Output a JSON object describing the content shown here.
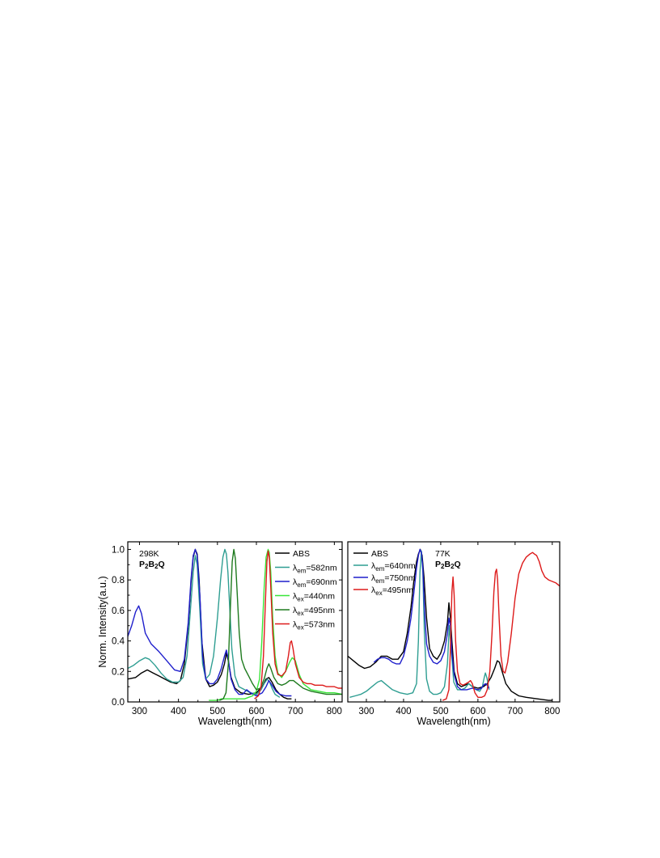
{
  "chart_data": [
    {
      "type": "line",
      "xlabel": "Wavelength(nm)",
      "ylabel": "Norm. Intensity(a.u.)",
      "xlim": [
        270,
        820
      ],
      "ylim": [
        0.0,
        1.05
      ],
      "xticks": [
        "300",
        "400",
        "500",
        "600",
        "700",
        "800"
      ],
      "yticks": [
        "0.0",
        "0.2",
        "0.4",
        "0.6",
        "0.8",
        "1.0"
      ],
      "annotations": [
        "298K",
        "P2B2Q"
      ],
      "legend": "top-right",
      "series": [
        {
          "name": "ABS",
          "label": {
            "base": "ABS",
            "sub": "",
            "value": ""
          },
          "color": "#000000",
          "x": [
            270,
            290,
            305,
            320,
            335,
            350,
            365,
            380,
            395,
            405,
            415,
            425,
            432,
            438,
            443,
            448,
            453,
            460,
            470,
            480,
            490,
            500,
            510,
            518,
            523,
            528,
            535,
            545,
            560,
            580,
            600,
            615,
            625,
            632,
            640,
            650,
            660,
            670,
            680,
            690
          ],
          "y": [
            0.15,
            0.16,
            0.19,
            0.21,
            0.19,
            0.17,
            0.15,
            0.13,
            0.12,
            0.14,
            0.25,
            0.5,
            0.78,
            0.95,
            1.0,
            0.97,
            0.8,
            0.4,
            0.15,
            0.1,
            0.11,
            0.13,
            0.18,
            0.25,
            0.32,
            0.27,
            0.16,
            0.09,
            0.06,
            0.05,
            0.06,
            0.1,
            0.15,
            0.16,
            0.13,
            0.08,
            0.05,
            0.03,
            0.02,
            0.02
          ]
        },
        {
          "name": "λem=582nm",
          "label": {
            "base": "λ",
            "sub": "em",
            "value": "=582nm"
          },
          "color": "#2f9e92",
          "x": [
            270,
            285,
            300,
            315,
            325,
            340,
            355,
            370,
            385,
            400,
            412,
            422,
            430,
            438,
            443,
            448,
            455,
            462,
            470,
            480,
            490,
            500,
            508,
            514,
            519,
            523,
            527,
            532,
            537,
            545,
            555,
            570,
            585,
            600,
            612,
            620,
            628,
            634,
            640,
            648,
            660
          ],
          "y": [
            0.22,
            0.24,
            0.27,
            0.29,
            0.28,
            0.24,
            0.19,
            0.15,
            0.13,
            0.13,
            0.16,
            0.3,
            0.58,
            0.85,
            0.96,
            0.9,
            0.6,
            0.25,
            0.15,
            0.18,
            0.3,
            0.55,
            0.8,
            0.95,
            1.0,
            0.97,
            0.85,
            0.6,
            0.35,
            0.17,
            0.1,
            0.08,
            0.06,
            0.05,
            0.08,
            0.12,
            0.15,
            0.13,
            0.09,
            0.05,
            0.03
          ]
        },
        {
          "name": "λem=690nm",
          "label": {
            "base": "λ",
            "sub": "em",
            "value": "=690nm"
          },
          "color": "#1f1fcc",
          "x": [
            270,
            280,
            290,
            298,
            305,
            315,
            330,
            350,
            370,
            390,
            405,
            415,
            425,
            432,
            438,
            443,
            448,
            455,
            462,
            470,
            480,
            490,
            500,
            510,
            518,
            523,
            528,
            535,
            545,
            555,
            565,
            575,
            585,
            600,
            615,
            625,
            632,
            640,
            650,
            660,
            675,
            690
          ],
          "y": [
            0.43,
            0.5,
            0.59,
            0.63,
            0.58,
            0.45,
            0.38,
            0.33,
            0.27,
            0.21,
            0.2,
            0.28,
            0.52,
            0.8,
            0.96,
            1.0,
            0.96,
            0.7,
            0.3,
            0.15,
            0.12,
            0.12,
            0.15,
            0.22,
            0.3,
            0.34,
            0.28,
            0.15,
            0.08,
            0.05,
            0.05,
            0.08,
            0.06,
            0.04,
            0.06,
            0.1,
            0.14,
            0.11,
            0.07,
            0.05,
            0.04,
            0.04
          ]
        },
        {
          "name": "λex=440nm",
          "label": {
            "base": "λ",
            "sub": "ex",
            "value": "=440nm"
          },
          "color": "#39e639",
          "x": [
            478,
            490,
            500,
            510,
            520,
            530,
            540,
            550,
            560,
            570,
            580,
            590,
            600,
            608,
            614,
            620,
            625,
            630,
            633,
            637,
            642,
            648,
            655,
            665,
            675,
            685,
            692,
            700,
            710,
            720,
            740,
            760,
            780,
            800,
            820
          ],
          "y": [
            0.01,
            0.01,
            0.01,
            0.02,
            0.02,
            0.02,
            0.02,
            0.02,
            0.02,
            0.02,
            0.03,
            0.04,
            0.07,
            0.15,
            0.4,
            0.75,
            0.95,
            1.0,
            0.98,
            0.85,
            0.55,
            0.3,
            0.19,
            0.16,
            0.2,
            0.26,
            0.29,
            0.27,
            0.18,
            0.12,
            0.08,
            0.07,
            0.06,
            0.06,
            0.05
          ]
        },
        {
          "name": "λex=495nm",
          "label": {
            "base": "λ",
            "sub": "ex",
            "value": "=495nm"
          },
          "color": "#1e7a1e",
          "x": [
            505,
            515,
            522,
            528,
            533,
            538,
            542,
            546,
            550,
            556,
            562,
            570,
            580,
            590,
            600,
            610,
            620,
            627,
            632,
            637,
            645,
            655,
            665,
            675,
            685,
            695,
            705,
            720,
            740,
            760,
            780,
            800,
            820
          ],
          "y": [
            0.01,
            0.02,
            0.06,
            0.25,
            0.6,
            0.92,
            1.0,
            0.94,
            0.75,
            0.45,
            0.28,
            0.22,
            0.17,
            0.12,
            0.08,
            0.09,
            0.15,
            0.22,
            0.25,
            0.22,
            0.16,
            0.12,
            0.11,
            0.12,
            0.14,
            0.14,
            0.12,
            0.09,
            0.07,
            0.06,
            0.05,
            0.05,
            0.05
          ]
        },
        {
          "name": "λex=573nm",
          "label": {
            "base": "λ",
            "sub": "ex",
            "value": "=573nm"
          },
          "color": "#dd1a1a",
          "x": [
            595,
            605,
            612,
            618,
            623,
            627,
            630,
            633,
            637,
            642,
            648,
            655,
            665,
            675,
            682,
            687,
            690,
            694,
            700,
            710,
            720,
            730,
            740,
            750,
            760,
            770,
            780,
            790,
            800,
            810,
            820
          ],
          "y": [
            0.02,
            0.04,
            0.1,
            0.3,
            0.65,
            0.92,
            0.99,
            0.95,
            0.75,
            0.45,
            0.25,
            0.18,
            0.17,
            0.2,
            0.3,
            0.39,
            0.4,
            0.35,
            0.25,
            0.16,
            0.13,
            0.12,
            0.12,
            0.11,
            0.11,
            0.11,
            0.1,
            0.1,
            0.1,
            0.09,
            0.09
          ]
        }
      ]
    },
    {
      "type": "line",
      "xlabel": "Wavelength(nm)",
      "ylabel": "",
      "xlim": [
        250,
        820
      ],
      "ylim": [
        0.0,
        1.05
      ],
      "xticks": [
        "300",
        "400",
        "500",
        "600",
        "700",
        "800"
      ],
      "yticks": [],
      "annotations": [
        "77K",
        "P2B2Q"
      ],
      "legend": "top-left",
      "series": [
        {
          "name": "ABS",
          "label": {
            "base": "ABS",
            "sub": "",
            "value": ""
          },
          "color": "#000000",
          "x": [
            250,
            265,
            280,
            295,
            310,
            325,
            340,
            355,
            370,
            385,
            400,
            410,
            420,
            428,
            435,
            440,
            445,
            450,
            455,
            462,
            470,
            480,
            490,
            500,
            510,
            518,
            522,
            526,
            530,
            536,
            545,
            555,
            565,
            575,
            585,
            600,
            615,
            625,
            635,
            645,
            652,
            658,
            665,
            675,
            690,
            710,
            730,
            760,
            790,
            800
          ],
          "y": [
            0.3,
            0.27,
            0.24,
            0.22,
            0.23,
            0.26,
            0.3,
            0.3,
            0.28,
            0.28,
            0.33,
            0.45,
            0.62,
            0.8,
            0.92,
            0.97,
            1.0,
            0.96,
            0.82,
            0.55,
            0.35,
            0.3,
            0.28,
            0.32,
            0.4,
            0.52,
            0.65,
            0.55,
            0.4,
            0.2,
            0.12,
            0.1,
            0.11,
            0.12,
            0.1,
            0.09,
            0.1,
            0.12,
            0.16,
            0.22,
            0.27,
            0.26,
            0.2,
            0.12,
            0.07,
            0.04,
            0.03,
            0.02,
            0.01,
            0.01
          ]
        },
        {
          "name": "λem=640nm",
          "label": {
            "base": "λ",
            "sub": "em",
            "value": "=640nm"
          },
          "color": "#2f9e92",
          "x": [
            255,
            270,
            285,
            300,
            315,
            330,
            340,
            355,
            370,
            390,
            410,
            425,
            435,
            440,
            444,
            448,
            452,
            456,
            462,
            470,
            480,
            490,
            500,
            510,
            518,
            523,
            528,
            535,
            545,
            555,
            565,
            575,
            585,
            595,
            605,
            612,
            617,
            620,
            624,
            630
          ],
          "y": [
            0.03,
            0.04,
            0.05,
            0.07,
            0.1,
            0.13,
            0.14,
            0.11,
            0.08,
            0.06,
            0.05,
            0.06,
            0.12,
            0.4,
            0.85,
            0.99,
            0.85,
            0.45,
            0.15,
            0.07,
            0.05,
            0.05,
            0.06,
            0.1,
            0.25,
            0.5,
            0.35,
            0.13,
            0.08,
            0.08,
            0.09,
            0.12,
            0.1,
            0.08,
            0.07,
            0.1,
            0.16,
            0.19,
            0.16,
            0.08
          ]
        },
        {
          "name": "λem=750nm",
          "label": {
            "base": "λ",
            "sub": "em",
            "value": "=750nm"
          },
          "color": "#1f1fcc",
          "x": [
            320,
            330,
            340,
            350,
            360,
            370,
            380,
            390,
            400,
            410,
            420,
            428,
            435,
            440,
            444,
            448,
            452,
            456,
            462,
            470,
            480,
            490,
            500,
            510,
            518,
            522,
            526,
            530,
            536,
            545,
            555,
            570,
            585,
            600,
            610,
            615,
            620,
            625,
            630
          ],
          "y": [
            0.26,
            0.28,
            0.29,
            0.29,
            0.28,
            0.26,
            0.25,
            0.25,
            0.3,
            0.4,
            0.55,
            0.72,
            0.88,
            0.96,
            1.0,
            0.98,
            0.88,
            0.62,
            0.38,
            0.3,
            0.26,
            0.25,
            0.27,
            0.33,
            0.45,
            0.55,
            0.5,
            0.32,
            0.18,
            0.1,
            0.08,
            0.08,
            0.09,
            0.08,
            0.09,
            0.11,
            0.12,
            0.11,
            0.09
          ]
        },
        {
          "name": "λex=495nm",
          "label": {
            "base": "λ",
            "sub": "ex",
            "value": "=495nm"
          },
          "color": "#dd1a1a",
          "x": [
            505,
            515,
            522,
            526,
            530,
            533,
            536,
            540,
            545,
            552,
            560,
            568,
            575,
            580,
            585,
            592,
            600,
            610,
            618,
            625,
            632,
            638,
            643,
            647,
            650,
            653,
            657,
            662,
            668,
            673,
            680,
            690,
            700,
            710,
            720,
            730,
            740,
            747,
            752,
            758,
            765,
            772,
            780,
            790,
            800,
            810,
            820
          ],
          "y": [
            0.01,
            0.02,
            0.08,
            0.35,
            0.72,
            0.82,
            0.7,
            0.4,
            0.2,
            0.12,
            0.11,
            0.12,
            0.13,
            0.14,
            0.12,
            0.06,
            0.03,
            0.03,
            0.04,
            0.08,
            0.2,
            0.45,
            0.72,
            0.85,
            0.87,
            0.8,
            0.55,
            0.3,
            0.2,
            0.19,
            0.26,
            0.45,
            0.68,
            0.84,
            0.91,
            0.95,
            0.97,
            0.98,
            0.97,
            0.96,
            0.92,
            0.86,
            0.82,
            0.8,
            0.79,
            0.78,
            0.76
          ]
        }
      ]
    }
  ]
}
